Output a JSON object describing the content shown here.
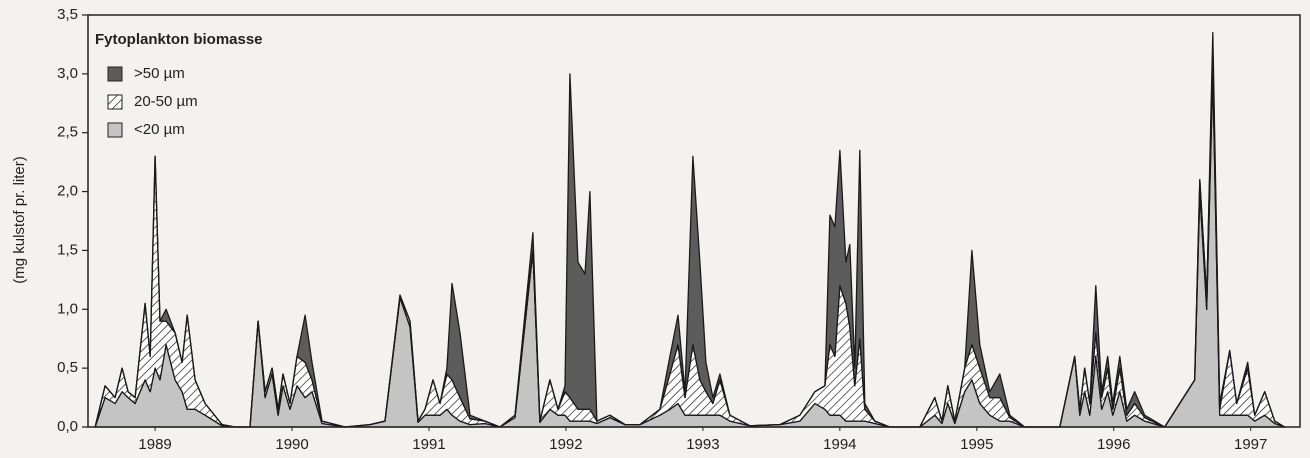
{
  "chart_data": {
    "type": "stacked_area",
    "legend_title": "Fytoplankton biomasse",
    "ylabel": "(mg kulstof pr. liter)",
    "xlim": [
      1989.01,
      1997.86
    ],
    "ylim": [
      0,
      3.5
    ],
    "yticks": [
      {
        "value": 0,
        "label": "0,0"
      },
      {
        "value": 0.5,
        "label": "0,5"
      },
      {
        "value": 1,
        "label": "1,0"
      },
      {
        "value": 1.5,
        "label": "1,5"
      },
      {
        "value": 2,
        "label": "2,0"
      },
      {
        "value": 2.5,
        "label": "2,5"
      },
      {
        "value": 3,
        "label": "3,0"
      },
      {
        "value": 3.5,
        "label": "3,5"
      }
    ],
    "xticks": [
      {
        "value": 1989.5,
        "label": "1989"
      },
      {
        "value": 1990.5,
        "label": "1990"
      },
      {
        "value": 1991.5,
        "label": "1991"
      },
      {
        "value": 1992.5,
        "label": "1992"
      },
      {
        "value": 1993.5,
        "label": "1993"
      },
      {
        "value": 1994.5,
        "label": "1994"
      },
      {
        "value": 1995.5,
        "label": "1995"
      },
      {
        "value": 1996.5,
        "label": "1996"
      },
      {
        "value": 1997.5,
        "label": "1997"
      }
    ],
    "x": [
      1989.062,
      1989.135,
      1989.208,
      1989.259,
      1989.303,
      1989.354,
      1989.427,
      1989.464,
      1989.5,
      1989.536,
      1989.58,
      1989.646,
      1989.697,
      1989.734,
      1989.792,
      1989.865,
      1989.989,
      1990.084,
      1990.193,
      1990.252,
      1990.303,
      1990.354,
      1990.398,
      1990.434,
      1990.485,
      1990.536,
      1990.595,
      1990.646,
      1990.719,
      1990.887,
      1991.069,
      1991.179,
      1991.288,
      1991.361,
      1991.42,
      1991.471,
      1991.529,
      1991.58,
      1991.631,
      1991.668,
      1991.726,
      1991.799,
      1991.909,
      1992.018,
      1992.128,
      1992.259,
      1992.31,
      1992.383,
      1992.442,
      1992.493,
      1992.529,
      1992.588,
      1992.639,
      1992.675,
      1992.726,
      1992.821,
      1992.931,
      1993.04,
      1993.186,
      1993.259,
      1993.318,
      1993.369,
      1993.427,
      1993.478,
      1993.522,
      1993.573,
      1993.624,
      1993.697,
      1993.843,
      1994.062,
      1994.208,
      1994.318,
      1994.391,
      1994.427,
      1994.464,
      1994.5,
      1994.544,
      1994.573,
      1994.609,
      1994.646,
      1994.682,
      1994.755,
      1994.865,
      1995.084,
      1995.193,
      1995.245,
      1995.288,
      1995.339,
      1995.412,
      1995.464,
      1995.522,
      1995.595,
      1995.668,
      1995.741,
      1995.85,
      1996.106,
      1996.215,
      1996.252,
      1996.288,
      1996.325,
      1996.369,
      1996.412,
      1996.456,
      1996.493,
      1996.544,
      1996.595,
      1996.653,
      1996.726,
      1996.872,
      1997.091,
      1997.128,
      1997.179,
      1997.223,
      1997.274,
      1997.347,
      1997.398,
      1997.478,
      1997.529,
      1997.602,
      1997.675,
      1997.748
    ],
    "series": [
      {
        "name": ">50 µm",
        "color": "#5c5c5c",
        "values": [
          0,
          0,
          0,
          0,
          0,
          0,
          0,
          0,
          0,
          0,
          0.1,
          0,
          0,
          0,
          0,
          0,
          0,
          0,
          0,
          0,
          0,
          0,
          0,
          0,
          0,
          0,
          0.4,
          0.15,
          0,
          0,
          0,
          0,
          0,
          0,
          0,
          0,
          0,
          0,
          0.05,
          0.82,
          0.55,
          0.03,
          0,
          0,
          0,
          0.15,
          0,
          0,
          0,
          0.05,
          2.75,
          1.25,
          1.15,
          1.85,
          0,
          0,
          0,
          0,
          0,
          0.15,
          0.25,
          0.05,
          1.6,
          1.0,
          0.25,
          0.05,
          0.05,
          0,
          0,
          0,
          0,
          0,
          0,
          1.1,
          1.1,
          1.15,
          0.35,
          0.7,
          0.15,
          1.6,
          0.05,
          0,
          0,
          0,
          0,
          0,
          0,
          0,
          0,
          0.8,
          0.2,
          0.05,
          0.2,
          0.02,
          0,
          0,
          0,
          0,
          0,
          0,
          0.4,
          0.05,
          0.1,
          0.05,
          0.1,
          0.05,
          0.1,
          0.02,
          0,
          0,
          0,
          0,
          0.15,
          0.05,
          0,
          0,
          0.05,
          0,
          0,
          0,
          0
        ]
      },
      {
        "name": "20-50 µm",
        "color": "#ffffff",
        "pattern": "hatch",
        "values": [
          0,
          0.1,
          0.05,
          0.2,
          0.05,
          0.05,
          0.65,
          0.3,
          1.8,
          0.5,
          0.2,
          0.4,
          0.25,
          0.8,
          0.25,
          0.1,
          0.01,
          0,
          0,
          0,
          0.05,
          0.05,
          0.05,
          0.1,
          0.05,
          0.25,
          0.3,
          0.1,
          0.02,
          0,
          0,
          0,
          0.02,
          0.05,
          0.01,
          0.05,
          0.3,
          0.1,
          0.3,
          0.3,
          0.2,
          0.05,
          0.02,
          0,
          0.02,
          0,
          0.01,
          0.25,
          0.05,
          0.2,
          0.2,
          0.1,
          0.1,
          0.1,
          0.02,
          0.02,
          0,
          0,
          0.05,
          0.3,
          0.5,
          0.15,
          0.6,
          0.3,
          0.2,
          0.1,
          0.3,
          0.05,
          0,
          0,
          0.05,
          0.1,
          0.2,
          0.6,
          0.5,
          1.1,
          1.0,
          0.8,
          0.3,
          0.7,
          0.1,
          0.02,
          0,
          0,
          0.15,
          0.02,
          0.15,
          0.02,
          0.2,
          0.3,
          0.3,
          0.15,
          0.2,
          0.03,
          0,
          0,
          0,
          0.05,
          0.2,
          0.1,
          0.2,
          0.1,
          0.2,
          0.05,
          0.2,
          0.05,
          0.1,
          0.03,
          0,
          0,
          0.1,
          0.1,
          0.2,
          0.05,
          0.55,
          0.1,
          0.4,
          0.05,
          0.2,
          0.02,
          0
        ]
      },
      {
        "name": "<20 µm",
        "color": "#c4c4c4",
        "values": [
          0,
          0.25,
          0.2,
          0.3,
          0.25,
          0.2,
          0.4,
          0.3,
          0.5,
          0.4,
          0.7,
          0.4,
          0.3,
          0.15,
          0.15,
          0.1,
          0.01,
          0,
          0,
          0.9,
          0.25,
          0.45,
          0.1,
          0.35,
          0.15,
          0.35,
          0.25,
          0.3,
          0.03,
          0,
          0.02,
          0.05,
          1.1,
          0.85,
          0.04,
          0.1,
          0.1,
          0.1,
          0.15,
          0.1,
          0.05,
          0.02,
          0.03,
          0,
          0.08,
          1.5,
          0.04,
          0.15,
          0.1,
          0.1,
          0.05,
          0.05,
          0.05,
          0.05,
          0.03,
          0.08,
          0.02,
          0.02,
          0.1,
          0.15,
          0.2,
          0.1,
          0.1,
          0.1,
          0.1,
          0.1,
          0.1,
          0.05,
          0.01,
          0.02,
          0.05,
          0.2,
          0.15,
          0.1,
          0.1,
          0.1,
          0.05,
          0.05,
          0.05,
          0.05,
          0.05,
          0.03,
          0,
          0,
          0.1,
          0.03,
          0.2,
          0.03,
          0.3,
          0.4,
          0.2,
          0.1,
          0.05,
          0.05,
          0,
          0,
          0.6,
          0.1,
          0.3,
          0.1,
          0.6,
          0.15,
          0.3,
          0.1,
          0.3,
          0.05,
          0.1,
          0.05,
          0,
          0.4,
          2.0,
          1.0,
          3.0,
          0.1,
          0.1,
          0.1,
          0.1,
          0.05,
          0.1,
          0.03,
          0
        ]
      }
    ]
  }
}
